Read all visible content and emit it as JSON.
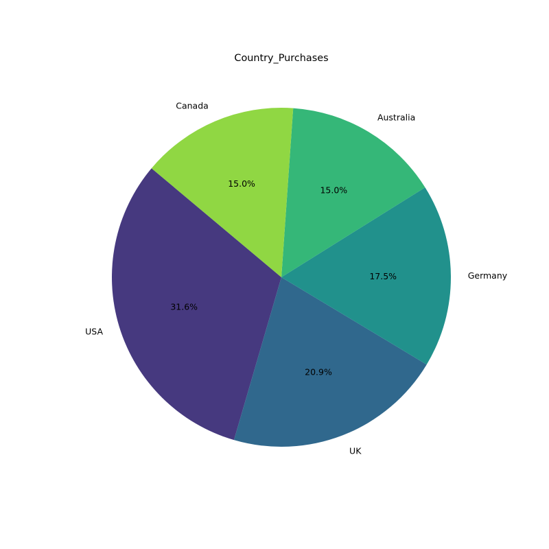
{
  "chart_data": {
    "type": "pie",
    "title": "Country_Purchases",
    "categories": [
      "USA",
      "UK",
      "Germany",
      "Australia",
      "Canada"
    ],
    "values": [
      31.6,
      20.9,
      17.5,
      15.0,
      15.0
    ],
    "percent_labels": [
      "31.6%",
      "20.9%",
      "17.5%",
      "15.0%",
      "15.0%"
    ],
    "colors": [
      "#46397f",
      "#30688d",
      "#21918c",
      "#35b778",
      "#90d743"
    ],
    "start_angle_deg": 140,
    "direction": "counterclockwise",
    "legend": "none"
  }
}
